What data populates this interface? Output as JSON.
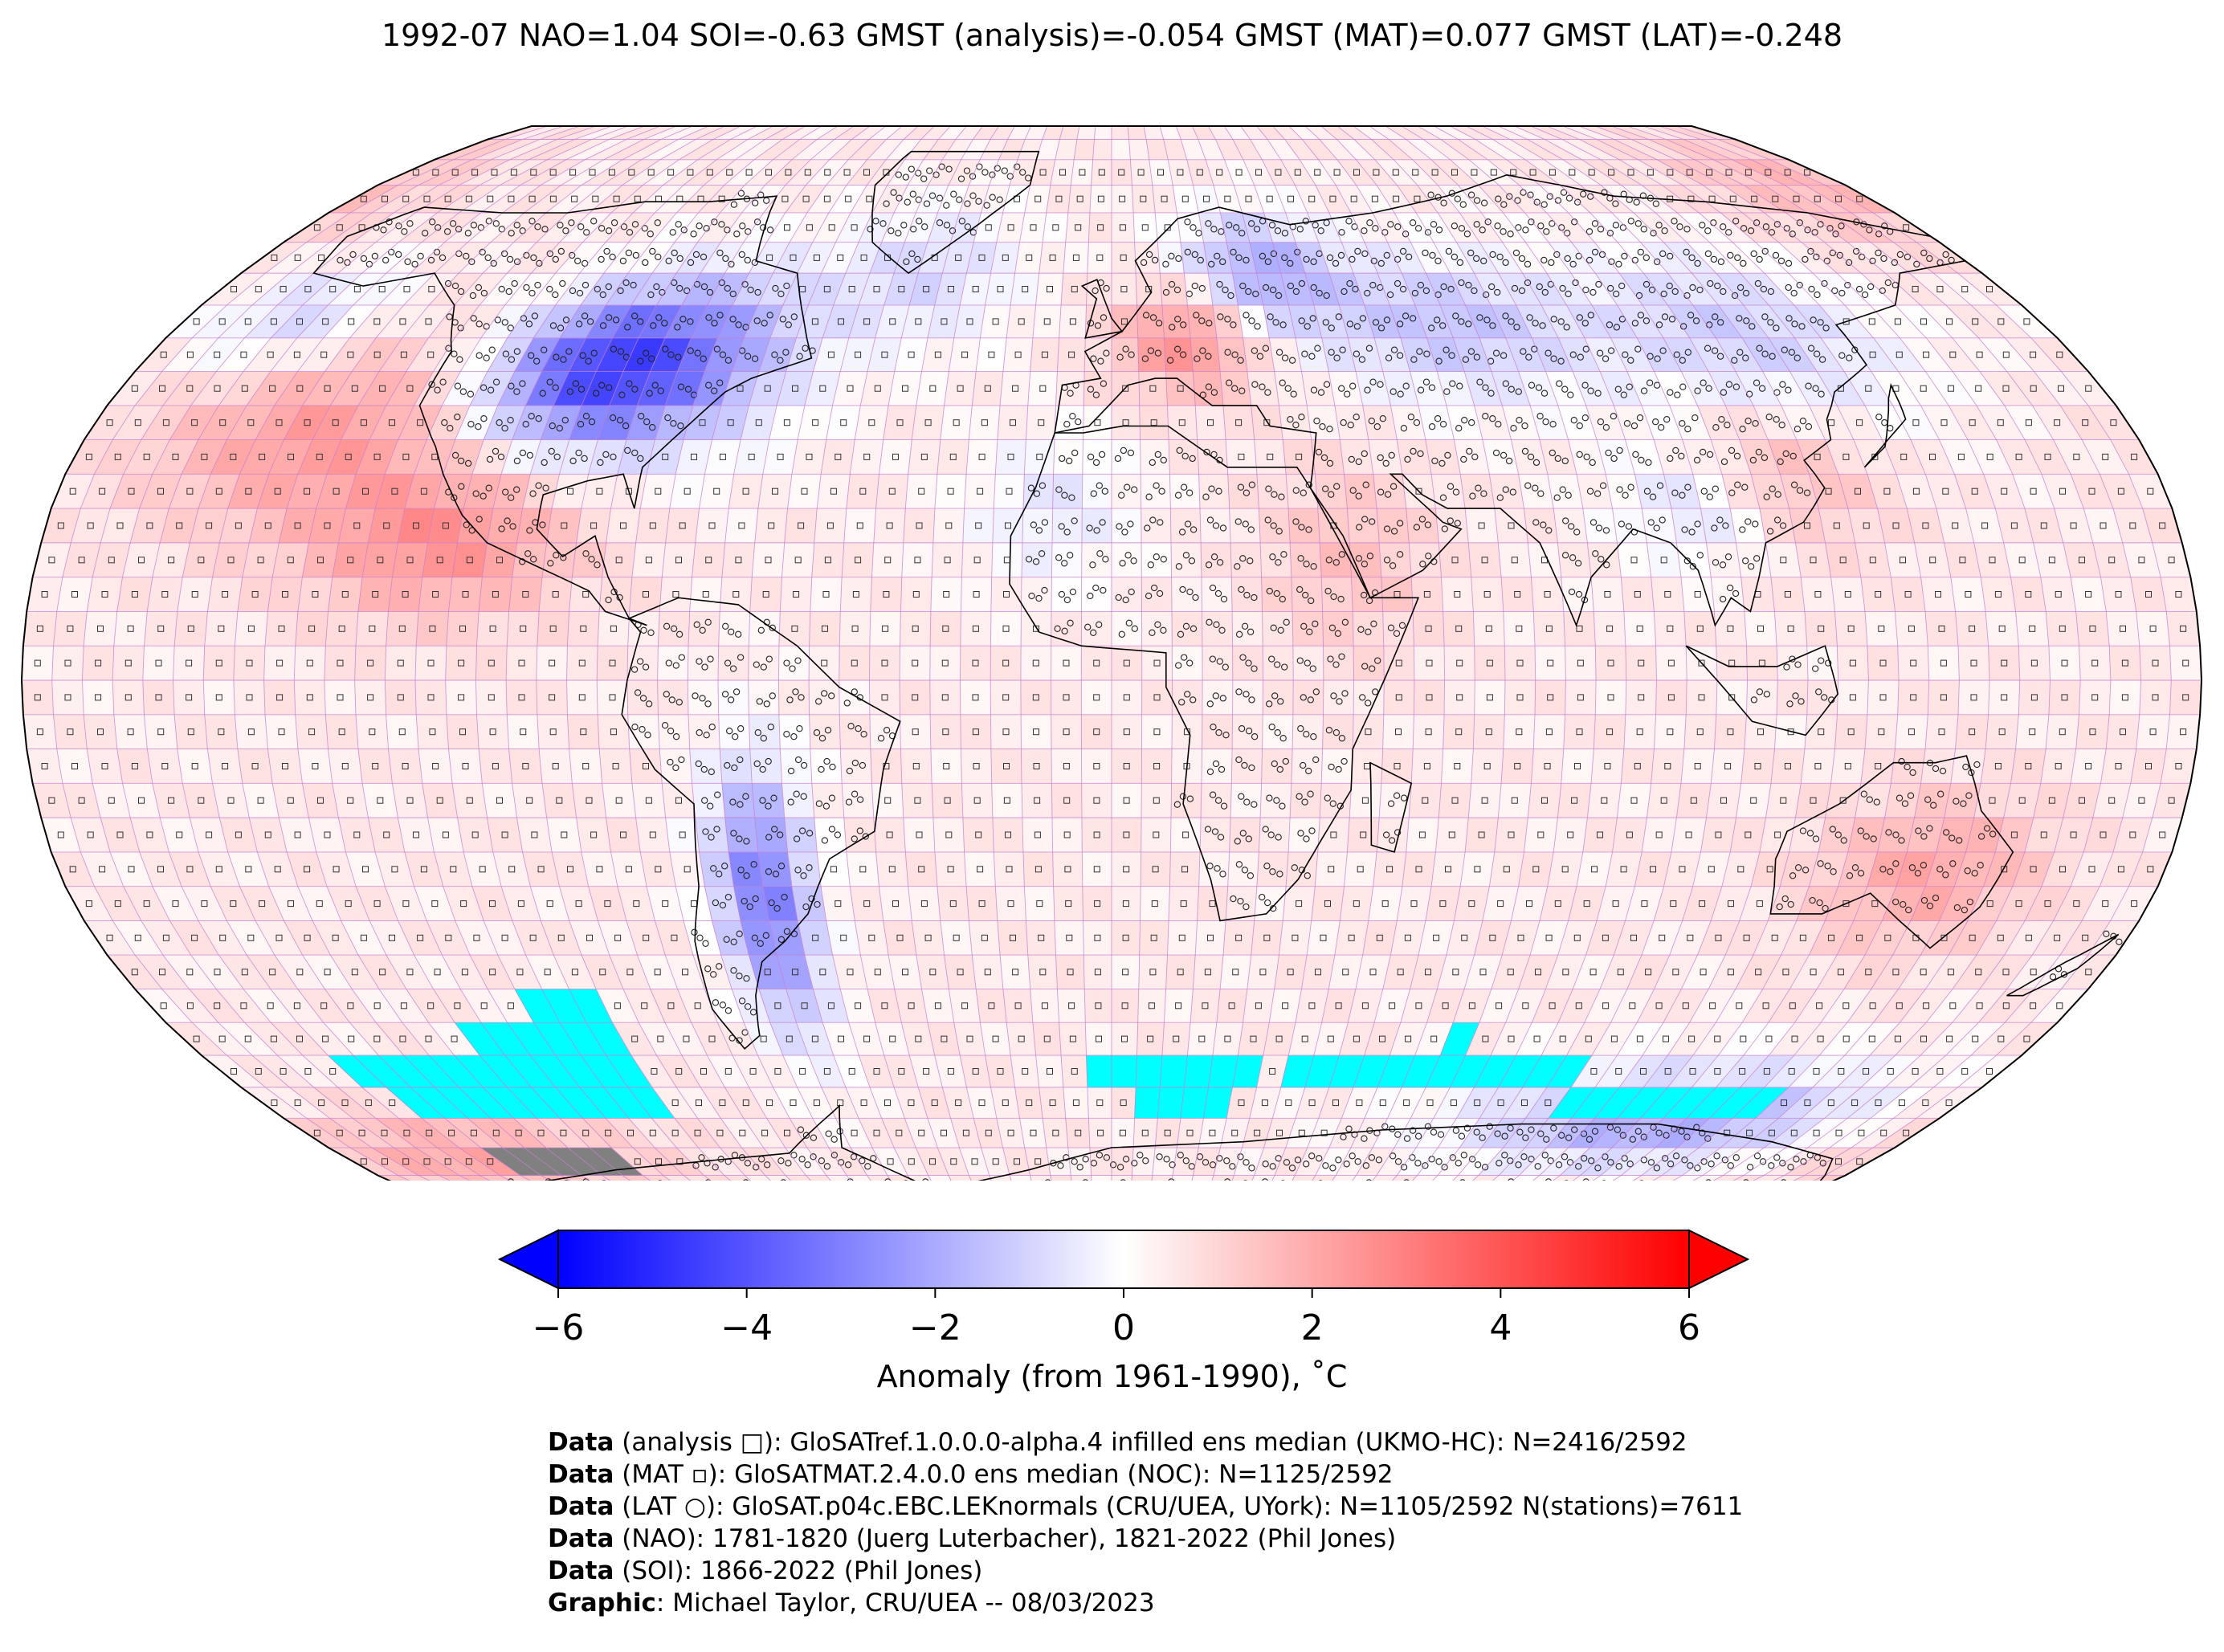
{
  "title": "1992-07 NAO=1.04 SOI=-0.63 GMST (analysis)=-0.054 GMST (MAT)=0.077 GMST (LAT)=-0.248",
  "colorbar": {
    "label": "Anomaly (from 1961-1990), ˚C",
    "min": -6,
    "max": 6,
    "ticks": [
      {
        "value": -6,
        "label": "−6"
      },
      {
        "value": -4,
        "label": "−4"
      },
      {
        "value": -2,
        "label": "−2"
      },
      {
        "value": 0,
        "label": "0"
      },
      {
        "value": 2,
        "label": "2"
      },
      {
        "value": 4,
        "label": "4"
      },
      {
        "value": 6,
        "label": "6"
      }
    ],
    "extend": "both",
    "colormap": [
      "#0000ff",
      "#ffffff",
      "#ff0000"
    ]
  },
  "map": {
    "projection": "Robinson",
    "grid_spacing_deg": 5,
    "missing_color": "#00ffff",
    "ice_color": "#808080",
    "coastline_color": "#000000",
    "gridline_color": "#c77fd0"
  },
  "credits": [
    {
      "bold": "Data",
      "text": " (analysis □): GloSATref.1.0.0.0-alpha.4 infilled ens median (UKMO-HC): N=2416/2592"
    },
    {
      "bold": "Data",
      "text": " (MAT ▫): GloSATMAT.2.4.0.0 ens median (NOC): N=1125/2592"
    },
    {
      "bold": "Data",
      "text": " (LAT ○): GloSAT.p04c.EBC.LEKnormals (CRU/UEA, UYork): N=1105/2592 N(stations)=7611"
    },
    {
      "bold": "Data",
      "text": " (NAO): 1781-1820 (Juerg Luterbacher), 1821-2022 (Phil Jones)"
    },
    {
      "bold": "Data",
      "text": " (SOI): 1866-2022 (Phil Jones)"
    },
    {
      "bold": "Graphic",
      "text": ": Michael Taylor, CRU/UEA -- 08/03/2023"
    }
  ]
}
